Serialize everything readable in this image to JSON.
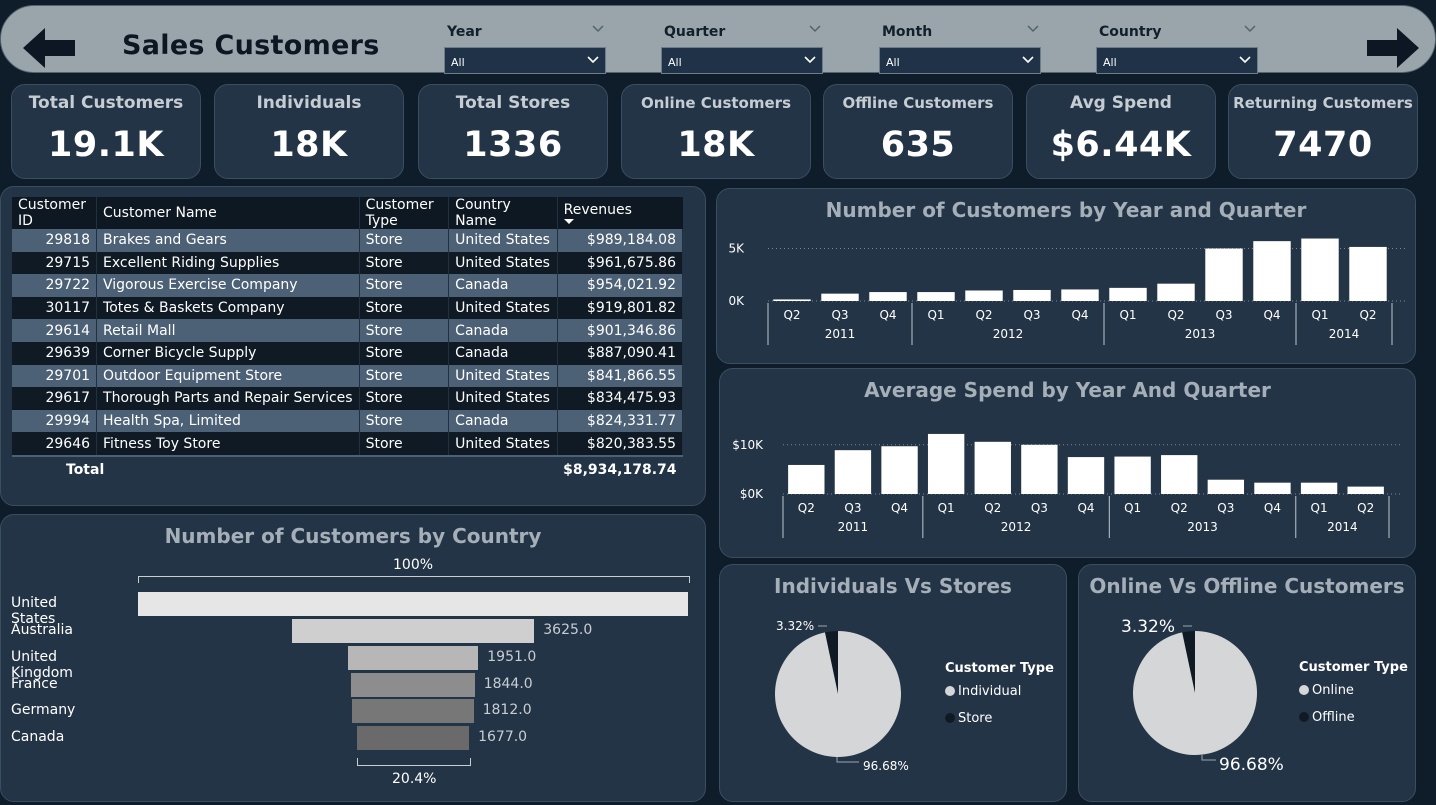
{
  "header": {
    "title": "Sales Customers",
    "back_icon": "left-arrow-icon",
    "forward_icon": "right-arrow-icon",
    "slicers": [
      {
        "title": "Year",
        "value": "All"
      },
      {
        "title": "Quarter",
        "value": "All"
      },
      {
        "title": "Month",
        "value": "All"
      },
      {
        "title": "Country",
        "value": "All"
      }
    ]
  },
  "kpis": [
    {
      "label": "Total Customers",
      "value": "19.1K"
    },
    {
      "label": "Individuals",
      "value": "18K"
    },
    {
      "label": "Total Stores",
      "value": "1336"
    },
    {
      "label": "Online Customers",
      "value": "18K"
    },
    {
      "label": "Offline Customers",
      "value": "635"
    },
    {
      "label": "Avg Spend",
      "value": "$6.44K"
    },
    {
      "label": "Returning Customers",
      "value": "7470"
    }
  ],
  "table": {
    "columns": [
      "Customer ID",
      "Customer Name",
      "Customer Type",
      "Country Name",
      "Revenues"
    ],
    "sort_column": "Revenues",
    "rows": [
      [
        "29818",
        "Brakes and Gears",
        "Store",
        "United States",
        "$989,184.08"
      ],
      [
        "29715",
        "Excellent Riding Supplies",
        "Store",
        "United States",
        "$961,675.86"
      ],
      [
        "29722",
        "Vigorous Exercise Company",
        "Store",
        "Canada",
        "$954,021.92"
      ],
      [
        "30117",
        "Totes & Baskets Company",
        "Store",
        "United States",
        "$919,801.82"
      ],
      [
        "29614",
        "Retail Mall",
        "Store",
        "Canada",
        "$901,346.86"
      ],
      [
        "29639",
        "Corner Bicycle Supply",
        "Store",
        "Canada",
        "$887,090.41"
      ],
      [
        "29701",
        "Outdoor Equipment Store",
        "Store",
        "United States",
        "$841,866.55"
      ],
      [
        "29617",
        "Thorough Parts and Repair Services",
        "Store",
        "United States",
        "$834,475.93"
      ],
      [
        "29994",
        "Health Spa, Limited",
        "Store",
        "Canada",
        "$824,331.77"
      ],
      [
        "29646",
        "Fitness Toy Store",
        "Store",
        "United States",
        "$820,383.55"
      ]
    ],
    "total_label": "Total",
    "total_value": "$8,934,178.74"
  },
  "chart_data": [
    {
      "type": "bar",
      "title": "Number of Customers by Year and Quarter",
      "categories": [
        "Q2",
        "Q3",
        "Q4",
        "Q1",
        "Q2",
        "Q3",
        "Q4",
        "Q1",
        "Q2",
        "Q3",
        "Q4",
        "Q1",
        "Q2"
      ],
      "year_groups": [
        {
          "year": "2011",
          "count": 3
        },
        {
          "year": "2012",
          "count": 4
        },
        {
          "year": "2013",
          "count": 4
        },
        {
          "year": "2014",
          "count": 2
        }
      ],
      "values": [
        150,
        700,
        850,
        850,
        1000,
        1050,
        1100,
        1250,
        1650,
        5000,
        5700,
        5950,
        5150
      ],
      "yticks": [
        "0K",
        "5K"
      ],
      "ylim": [
        0,
        6000
      ],
      "color": "#ffffff"
    },
    {
      "type": "bar",
      "title": "Average Spend by Year And Quarter",
      "categories": [
        "Q2",
        "Q3",
        "Q4",
        "Q1",
        "Q2",
        "Q3",
        "Q4",
        "Q1",
        "Q2",
        "Q3",
        "Q4",
        "Q1",
        "Q2"
      ],
      "year_groups": [
        {
          "year": "2011",
          "count": 3
        },
        {
          "year": "2012",
          "count": 4
        },
        {
          "year": "2013",
          "count": 4
        },
        {
          "year": "2014",
          "count": 2
        }
      ],
      "values": [
        5900,
        8900,
        9700,
        12200,
        10600,
        10000,
        7500,
        7600,
        7900,
        2900,
        2300,
        2300,
        1500
      ],
      "yticks": [
        "$0K",
        "$10K"
      ],
      "ylim": [
        0,
        13000
      ],
      "color": "#ffffff"
    },
    {
      "type": "bar",
      "title": "Number of Customers by Country",
      "subtype": "funnel",
      "top_label": "100%",
      "bottom_label": "20.4%",
      "categories": [
        "United States",
        "Australia",
        "United Kingdom",
        "France",
        "Germany",
        "Canada"
      ],
      "values": [
        8220,
        3625,
        1951,
        1844,
        1812,
        1677
      ],
      "value_labels": [
        "",
        "3625.0",
        "1951.0",
        "1844.0",
        "1812.0",
        "1677.0"
      ],
      "colors": [
        "#e6e6e6",
        "#cfcfcf",
        "#b7b7b7",
        "#8d8d8d",
        "#777777",
        "#6a6a6a"
      ]
    },
    {
      "type": "pie",
      "title": "Individuals Vs Stores",
      "legend_title": "Customer Type",
      "labels": [
        "Individual",
        "Store"
      ],
      "values": [
        96.68,
        3.32
      ],
      "pct_labels": [
        "96.68%",
        "3.32%"
      ],
      "colors": [
        "#d4d6d7",
        "#0f1a25"
      ]
    },
    {
      "type": "pie",
      "title": "Online Vs Offline Customers",
      "legend_title": "Customer Type",
      "labels": [
        "Online",
        "Offline"
      ],
      "values": [
        96.68,
        3.32
      ],
      "pct_labels": [
        "96.68%",
        "3.32%"
      ],
      "colors": [
        "#d4d6d7",
        "#0f1a25"
      ]
    }
  ]
}
